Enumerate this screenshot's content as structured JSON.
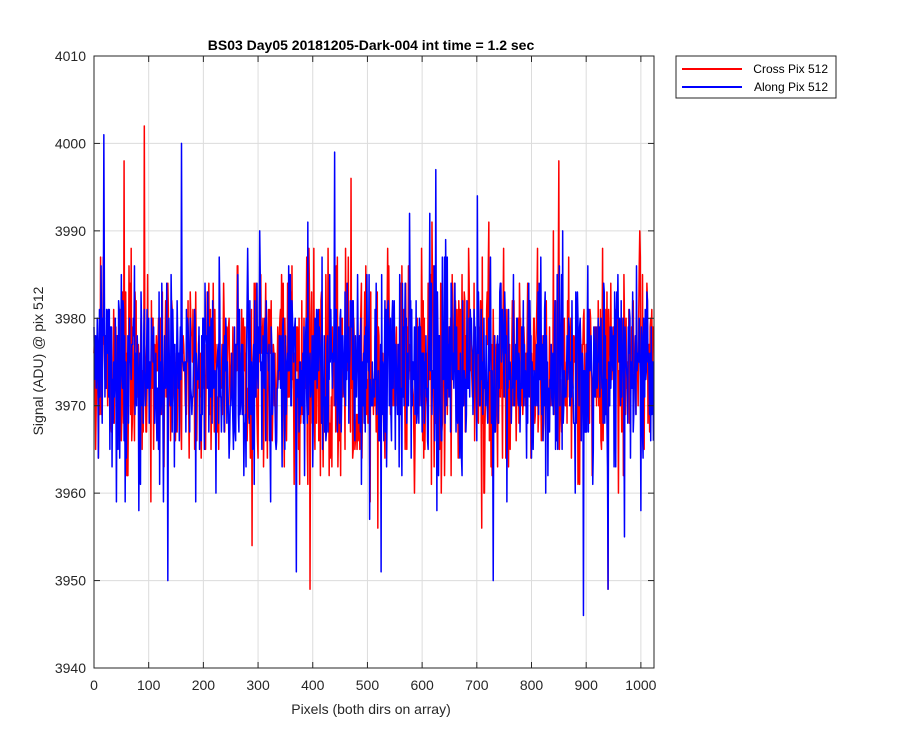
{
  "chart_data": {
    "type": "line",
    "title": "BS03 Day05 20181205-Dark-004 int time = 1.2 sec",
    "xlabel": "Pixels (both dirs on array)",
    "ylabel": "Signal (ADU) @ pix 512",
    "xlim": [
      0,
      1024
    ],
    "ylim": [
      3940,
      4010
    ],
    "xticks": [
      0,
      100,
      200,
      300,
      400,
      500,
      600,
      700,
      800,
      900,
      1000
    ],
    "yticks": [
      3940,
      3950,
      3960,
      3970,
      3980,
      3990,
      4000,
      4010
    ],
    "grid": true,
    "legend_position": "outside-top-right",
    "series": [
      {
        "name": "Cross Pix 512",
        "color": "#ff0000",
        "x_start": 0,
        "x_step": 1,
        "mean": 3974,
        "std": 6.2,
        "min": 3949,
        "max": 4002,
        "seed": 17,
        "extremes": [
          [
            92,
            4002
          ],
          [
            55,
            3998
          ],
          [
            395,
            3949
          ],
          [
            940,
            3949
          ],
          [
            850,
            3998
          ],
          [
            470,
            3996
          ]
        ]
      },
      {
        "name": "Along Pix 512",
        "color": "#0000ff",
        "x_start": 0,
        "x_step": 1,
        "mean": 3974,
        "std": 6.0,
        "min": 3946,
        "max": 4001,
        "seed": 91,
        "extremes": [
          [
            18,
            4001
          ],
          [
            160,
            4000
          ],
          [
            440,
            3999
          ],
          [
            895,
            3946
          ],
          [
            135,
            3950
          ],
          [
            370,
            3951
          ],
          [
            525,
            3951
          ],
          [
            730,
            3950
          ],
          [
            940,
            3949
          ],
          [
            625,
            3997
          ]
        ]
      }
    ]
  }
}
